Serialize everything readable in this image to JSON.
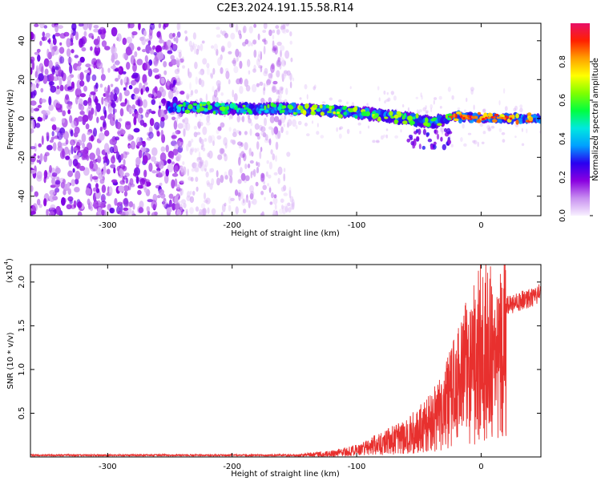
{
  "title": "C2E3.2024.191.15.58.R14",
  "chart_data": [
    {
      "type": "heatmap",
      "xlabel": "Height of straight line (km)",
      "ylabel": "Frequency (Hz)",
      "xlim": [
        -362,
        48
      ],
      "ylim": [
        -50,
        49
      ],
      "xticks": [
        "-300",
        "-200",
        "-100",
        "0"
      ],
      "xtick_values": [
        -300,
        -200,
        -100,
        0
      ],
      "yticks": [
        "40",
        "20",
        "0",
        "-20",
        "-40"
      ],
      "ytick_values": [
        40,
        20,
        0,
        -20,
        -40
      ],
      "grid": false,
      "colorbar": {
        "label": "Normalized spectral amplitude",
        "ticks": [
          "0.0",
          "0.2",
          "0.4",
          "0.6",
          "0.8"
        ],
        "tick_values": [
          0.0,
          0.2,
          0.4,
          0.6,
          0.8
        ],
        "range": [
          0,
          1
        ],
        "colormap": [
          "#f8f0ff",
          "#c890f0",
          "#8a00e0",
          "#2a00f0",
          "#00a0ff",
          "#00e8e0",
          "#00ff40",
          "#80ff00",
          "#ffff00",
          "#ffa000",
          "#ff2000",
          "#e81068"
        ]
      },
      "ridge": {
        "x": [
          -250,
          -200,
          -150,
          -100,
          -60,
          -40,
          -20,
          0,
          20,
          48
        ],
        "y": [
          6,
          5,
          5,
          3,
          0,
          -2,
          1,
          0,
          0,
          0
        ]
      }
    },
    {
      "type": "line",
      "xlabel": "Height of straight line (km)",
      "ylabel": "SNR (10 * v/v)",
      "yscale_label": "(x10",
      "yscale_exp": "4",
      "xlim": [
        -362,
        48
      ],
      "ylim": [
        0,
        2.2
      ],
      "xticks": [
        "-300",
        "-200",
        "-100",
        "0"
      ],
      "xtick_values": [
        -300,
        -200,
        -100,
        0
      ],
      "yticks": [
        "2.0",
        "1.5",
        "1.0",
        "0.5"
      ],
      "ytick_values": [
        2.0,
        1.5,
        1.0,
        0.5
      ],
      "grid": false,
      "line_color": "#e8302e",
      "series_envelope": {
        "x": [
          -362,
          -150,
          -120,
          -100,
          -80,
          -60,
          -45,
          -30,
          -20,
          -10,
          0,
          20,
          40,
          48
        ],
        "y": [
          0.02,
          0.02,
          0.05,
          0.1,
          0.2,
          0.3,
          0.45,
          0.7,
          1.0,
          1.3,
          1.55,
          1.8,
          1.9,
          1.95
        ]
      }
    }
  ]
}
